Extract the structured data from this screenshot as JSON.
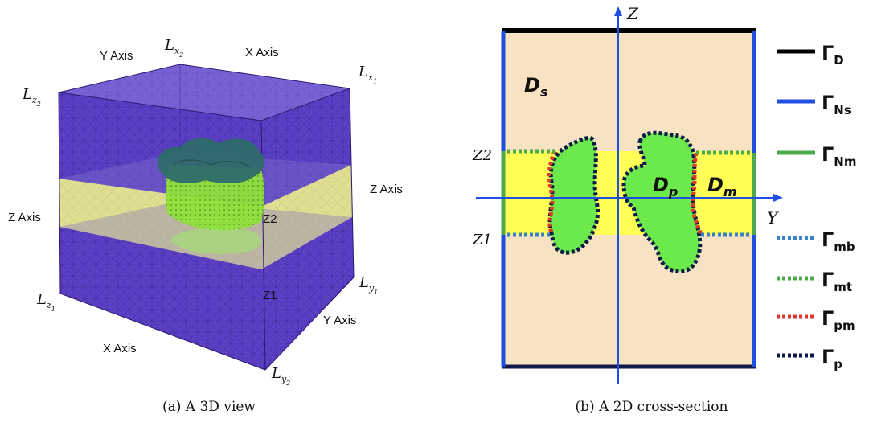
{
  "panel_a": {
    "caption": "(a) A 3D view",
    "labels": {
      "y_axis_top": "Y Axis",
      "x_axis_top": "X Axis",
      "z_axis_left": "Z Axis",
      "z_axis_right": "Z Axis",
      "x_axis_bottom": "X Axis",
      "y_axis_bottom": "Y Axis",
      "z2": "Z2",
      "z1": "Z1"
    },
    "corner_labels": {
      "lx2": {
        "base": "L",
        "sub": "x",
        "subsub": "2"
      },
      "lx1": {
        "base": "L",
        "sub": "x",
        "subsub": "1"
      },
      "lz2": {
        "base": "L",
        "sub": "z",
        "subsub": "2"
      },
      "lz1": {
        "base": "L",
        "sub": "z",
        "subsub": "1"
      },
      "ly1": {
        "base": "L",
        "sub": "y",
        "subsub": "1"
      },
      "ly2": {
        "base": "L",
        "sub": "y",
        "subsub": "2"
      }
    },
    "colors": {
      "mesh": "#5b3fc4",
      "mesh_edge": "#2c1a7a",
      "band": "#e6e88a",
      "inclusion_top": "#2f6b6b",
      "inclusion_bottom": "#8fe03a"
    }
  },
  "panel_b": {
    "caption": "(b) A 2D cross-section",
    "axis_z": "Z",
    "axis_y": "Y",
    "level_z2": "Z2",
    "level_z1": "Z1",
    "regions": {
      "ds": {
        "base": "D",
        "sub": "s"
      },
      "dp": {
        "base": "D",
        "sub": "p"
      },
      "dm": {
        "base": "D",
        "sub": "m"
      }
    },
    "legend": [
      {
        "symbol": "Γ",
        "sub": "D",
        "color": "#000000",
        "style": "solid"
      },
      {
        "symbol": "Γ",
        "sub": "Ns",
        "color": "#1f4fe0",
        "style": "solid"
      },
      {
        "symbol": "Γ",
        "sub": "Nm",
        "color": "#4caa4c",
        "style": "solid"
      },
      {
        "symbol": "Γ",
        "sub": "mb",
        "color": "#3a7fc8",
        "style": "dotted"
      },
      {
        "symbol": "Γ",
        "sub": "mt",
        "color": "#4caa4c",
        "style": "dotted"
      },
      {
        "symbol": "Γ",
        "sub": "pm",
        "color": "#e03a2a",
        "style": "dotted"
      },
      {
        "symbol": "Γ",
        "sub": "p",
        "color": "#0d1a4a",
        "style": "dotted"
      }
    ],
    "colors": {
      "domain": "#f7e2c2",
      "band": "#ffff55",
      "inclusion": "#6cea4c",
      "axis": "#1f4fe0",
      "border_top": "#000000",
      "border_bottom": "#0d1a4a",
      "border_side": "#1f4fe0"
    }
  }
}
